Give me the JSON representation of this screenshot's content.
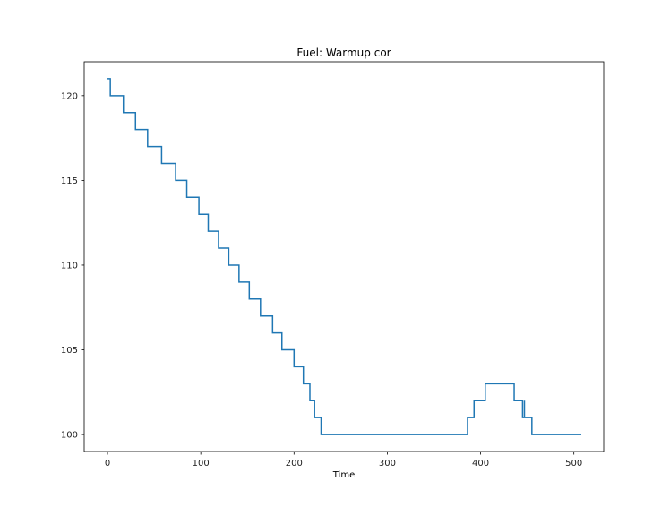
{
  "chart_data": {
    "type": "line",
    "step": true,
    "title": "Fuel: Warmup cor",
    "xlabel": "Time",
    "ylabel": "",
    "xlim": [
      -25,
      532
    ],
    "ylim": [
      99,
      122
    ],
    "x_ticks": [
      0,
      100,
      200,
      300,
      400,
      500
    ],
    "y_ticks": [
      100,
      105,
      110,
      115,
      120
    ],
    "grid": false,
    "color": "#1f77b4",
    "series": [
      {
        "name": "Warmup cor",
        "points": [
          [
            0,
            121
          ],
          [
            3,
            121
          ],
          [
            3,
            120
          ],
          [
            17,
            120
          ],
          [
            17,
            119
          ],
          [
            30,
            119
          ],
          [
            30,
            118
          ],
          [
            43,
            118
          ],
          [
            43,
            117
          ],
          [
            58,
            117
          ],
          [
            58,
            116
          ],
          [
            73,
            116
          ],
          [
            73,
            115
          ],
          [
            85,
            115
          ],
          [
            85,
            114
          ],
          [
            98,
            114
          ],
          [
            98,
            113
          ],
          [
            108,
            113
          ],
          [
            108,
            112
          ],
          [
            119,
            112
          ],
          [
            119,
            111
          ],
          [
            130,
            111
          ],
          [
            130,
            110
          ],
          [
            141,
            110
          ],
          [
            141,
            109
          ],
          [
            152,
            109
          ],
          [
            152,
            108
          ],
          [
            164,
            108
          ],
          [
            164,
            107
          ],
          [
            177,
            107
          ],
          [
            177,
            106
          ],
          [
            187,
            106
          ],
          [
            187,
            105
          ],
          [
            200,
            105
          ],
          [
            200,
            104
          ],
          [
            210,
            104
          ],
          [
            210,
            103
          ],
          [
            217,
            103
          ],
          [
            217,
            102
          ],
          [
            222,
            102
          ],
          [
            222,
            101
          ],
          [
            229,
            101
          ],
          [
            229,
            100
          ],
          [
            386,
            100
          ],
          [
            386,
            101
          ],
          [
            393,
            101
          ],
          [
            393,
            102
          ],
          [
            405,
            102
          ],
          [
            405,
            103
          ],
          [
            436,
            103
          ],
          [
            436,
            102
          ],
          [
            445,
            102
          ],
          [
            445,
            101
          ],
          [
            447,
            101
          ],
          [
            447,
            102
          ],
          [
            447,
            101
          ],
          [
            455,
            101
          ],
          [
            455,
            100
          ],
          [
            508,
            100
          ]
        ]
      }
    ]
  }
}
